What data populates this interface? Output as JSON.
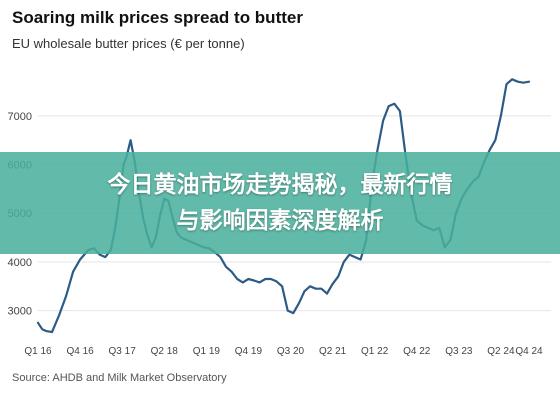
{
  "header": {
    "title": "Soaring milk prices spread to butter",
    "subtitle": "EU wholesale butter prices (€ per tonne)"
  },
  "footer": {
    "source": "Source: AHDB and Milk Market Observatory"
  },
  "overlay": {
    "line1": "今日黄油市场走势揭秘，最新行情",
    "line2": "与影响因素深度解析",
    "color": "#48b09c"
  },
  "colors": {
    "line": "#2c5b86",
    "grid": "#e4e4e4",
    "tick_text": "#444444"
  },
  "chart_data": {
    "type": "line",
    "title": "Soaring milk prices spread to butter",
    "subtitle": "EU wholesale butter prices (€ per tonne)",
    "xlabel": "",
    "ylabel": "",
    "ylim": [
      2500,
      7900
    ],
    "yticks": [
      3000,
      4000,
      5000,
      6000,
      7000
    ],
    "grid": true,
    "xticks": [
      "Q1 16",
      "Q4 16",
      "Q3 17",
      "Q2 18",
      "Q1 19",
      "Q4 19",
      "Q3 20",
      "Q2 21",
      "Q1 22",
      "Q4 22",
      "Q3 23",
      "Q2 24",
      "Q4 24"
    ],
    "xtick_positions": [
      0,
      3,
      6,
      9,
      12,
      15,
      18,
      21,
      24,
      27,
      30,
      33,
      35
    ],
    "x_range": [
      0,
      36
    ],
    "series": [
      {
        "x": [
          0,
          0.3,
          0.6,
          1.0,
          1.5,
          2.0,
          2.5,
          3.0,
          3.3,
          3.6,
          4.0,
          4.4,
          4.8,
          5.2,
          5.5,
          5.8,
          6.1,
          6.3,
          6.6,
          6.9,
          7.2,
          7.5,
          7.8,
          8.1,
          8.4,
          8.7,
          9.0,
          9.3,
          9.6,
          9.9,
          10.2,
          10.6,
          11.0,
          11.4,
          11.8,
          12.2,
          12.6,
          13.0,
          13.4,
          13.8,
          14.2,
          14.6,
          15.0,
          15.4,
          15.8,
          16.2,
          16.6,
          17.0,
          17.4,
          17.8,
          18.2,
          18.6,
          19.0,
          19.4,
          19.8,
          20.2,
          20.6,
          21.0,
          21.4,
          21.8,
          22.2,
          22.6,
          23.0,
          23.4,
          23.8,
          24.2,
          24.6,
          25.0,
          25.4,
          25.8,
          26.2,
          26.6,
          27.0,
          27.4,
          27.8,
          28.2,
          28.6,
          29.0,
          29.4,
          29.8,
          30.2,
          30.6,
          31.0,
          31.4,
          31.8,
          32.2,
          32.6,
          33.0,
          33.4,
          33.8,
          34.2,
          34.6,
          35.0
        ],
        "y": [
          2750,
          2620,
          2580,
          2560,
          2900,
          3300,
          3800,
          4050,
          4150,
          4250,
          4280,
          4150,
          4100,
          4250,
          4700,
          5300,
          6000,
          6150,
          6500,
          6050,
          5400,
          4900,
          4550,
          4300,
          4500,
          4950,
          5300,
          5250,
          4900,
          4600,
          4500,
          4450,
          4400,
          4350,
          4300,
          4280,
          4200,
          4100,
          3900,
          3800,
          3650,
          3580,
          3650,
          3620,
          3580,
          3650,
          3650,
          3600,
          3500,
          3000,
          2950,
          3150,
          3400,
          3500,
          3450,
          3450,
          3350,
          3550,
          3700,
          4000,
          4150,
          4100,
          4050,
          4450,
          5600,
          6300,
          6900,
          7200,
          7250,
          7100,
          6200,
          5400,
          4850,
          4750,
          4700,
          4650,
          4700,
          4300,
          4450,
          5000,
          5300,
          5500,
          5650,
          5750,
          6050,
          6300,
          6500,
          7000,
          7650,
          7750,
          7700,
          7680,
          7700
        ]
      }
    ]
  }
}
